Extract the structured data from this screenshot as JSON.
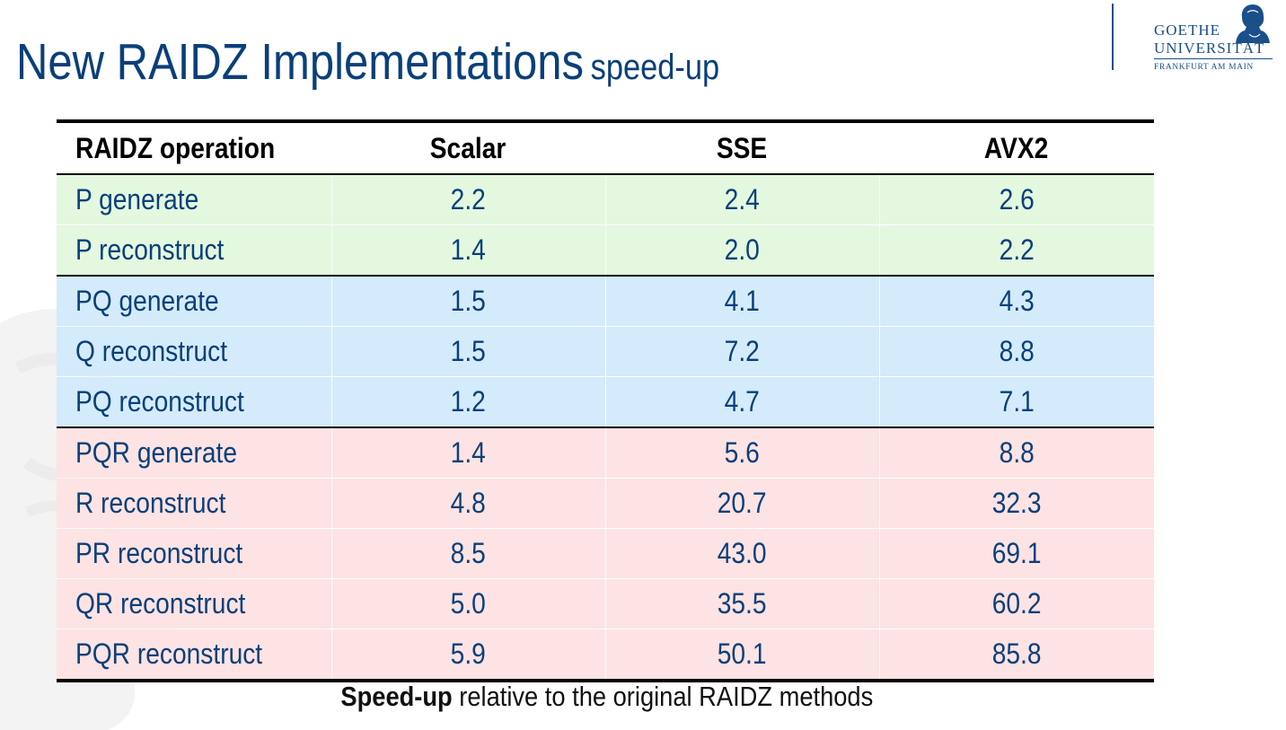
{
  "slide": {
    "title": "New RAIDZ Implementations",
    "subtitle": "speed-up"
  },
  "logo": {
    "line1": "GOETHE",
    "line2": "UNIVERSITÄT",
    "line3": "FRANKFURT AM MAIN"
  },
  "table": {
    "headers": [
      "RAIDZ operation",
      "Scalar",
      "SSE",
      "AVX2"
    ],
    "rows": [
      {
        "operation": "P generate",
        "scalar": "2.2",
        "sse": "2.4",
        "avx2": "2.6",
        "group_color": "#e3f8df"
      },
      {
        "operation": "P reconstruct",
        "scalar": "1.4",
        "sse": "2.0",
        "avx2": "2.2",
        "group_color": "#e3f8df"
      },
      {
        "operation": "PQ generate",
        "scalar": "1.5",
        "sse": "4.1",
        "avx2": "4.3",
        "group_color": "#d3ebfb"
      },
      {
        "operation": "Q reconstruct",
        "scalar": "1.5",
        "sse": "7.2",
        "avx2": "8.8",
        "group_color": "#d3ebfb"
      },
      {
        "operation": "PQ reconstruct",
        "scalar": "1.2",
        "sse": "4.7",
        "avx2": "7.1",
        "group_color": "#d3ebfb"
      },
      {
        "operation": "PQR generate",
        "scalar": "1.4",
        "sse": "5.6",
        "avx2": "8.8",
        "group_color": "#fde3e3"
      },
      {
        "operation": "R reconstruct",
        "scalar": "4.8",
        "sse": "20.7",
        "avx2": "32.3",
        "group_color": "#fde3e3"
      },
      {
        "operation": "PR reconstruct",
        "scalar": "8.5",
        "sse": "43.0",
        "avx2": "69.1",
        "group_color": "#fde3e3"
      },
      {
        "operation": "QR reconstruct",
        "scalar": "5.0",
        "sse": "35.5",
        "avx2": "60.2",
        "group_color": "#fde3e3"
      },
      {
        "operation": "PQR reconstruct",
        "scalar": "5.9",
        "sse": "50.1",
        "avx2": "85.8",
        "group_color": "#fde3e3"
      }
    ]
  },
  "caption": {
    "bold": "Speed-up",
    "rest": " relative to the original RAIDZ methods"
  },
  "colors": {
    "title": "#0a3f7a",
    "green_group": "#e3f8df",
    "blue_group": "#d3ebfb",
    "red_group": "#fde3e3"
  }
}
